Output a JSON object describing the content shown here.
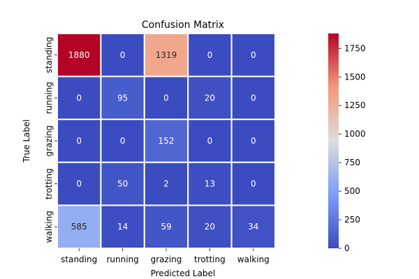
{
  "chart_data": {
    "type": "heatmap",
    "title": "Confusion Matrix",
    "xlabel": "Predicted Label",
    "ylabel": "True Label",
    "x_categories": [
      "standing",
      "running",
      "grazing",
      "trotting",
      "walking"
    ],
    "y_categories": [
      "standing",
      "running",
      "grazing",
      "trotting",
      "walking"
    ],
    "values": [
      [
        1880,
        0,
        1319,
        0,
        0
      ],
      [
        0,
        95,
        0,
        20,
        0
      ],
      [
        0,
        0,
        152,
        0,
        0
      ],
      [
        0,
        50,
        2,
        13,
        0
      ],
      [
        585,
        14,
        59,
        20,
        34
      ]
    ],
    "colormap": "coolwarm",
    "colorbar": {
      "range": [
        0,
        1880
      ],
      "ticks": [
        0,
        250,
        500,
        750,
        1000,
        1250,
        1500,
        1750
      ]
    }
  }
}
